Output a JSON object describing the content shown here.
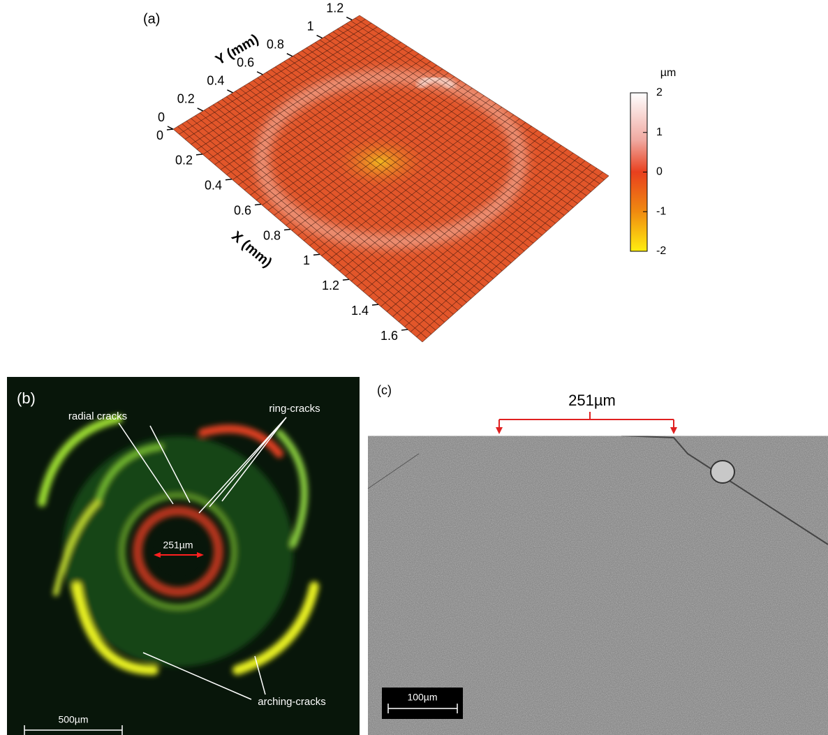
{
  "panel_a": {
    "label": "(a)",
    "x_axis": {
      "title": "X (mm)",
      "ticks": [
        0,
        0.2,
        0.4,
        0.6,
        0.8,
        1,
        1.2,
        1.4,
        1.6
      ],
      "lim": [
        0,
        1.7
      ]
    },
    "y_axis": {
      "title": "Y (mm)",
      "ticks": [
        0,
        0.2,
        0.4,
        0.6,
        0.8,
        1,
        1.2
      ],
      "lim": [
        0,
        1.25
      ]
    },
    "colorbar": {
      "unit": "µm",
      "ticks": [
        -2,
        -1,
        0,
        1,
        2
      ],
      "lim": [
        -2,
        2
      ]
    }
  },
  "panel_b": {
    "label": "(b)",
    "annotations": [
      "radial cracks",
      "ring-cracks",
      "arching-cracks"
    ],
    "indent_diameter": "251µm",
    "scale_bar": "500µm"
  },
  "panel_c": {
    "label": "(c)",
    "indent_width": "251µm",
    "scale_bar": "100µm"
  }
}
